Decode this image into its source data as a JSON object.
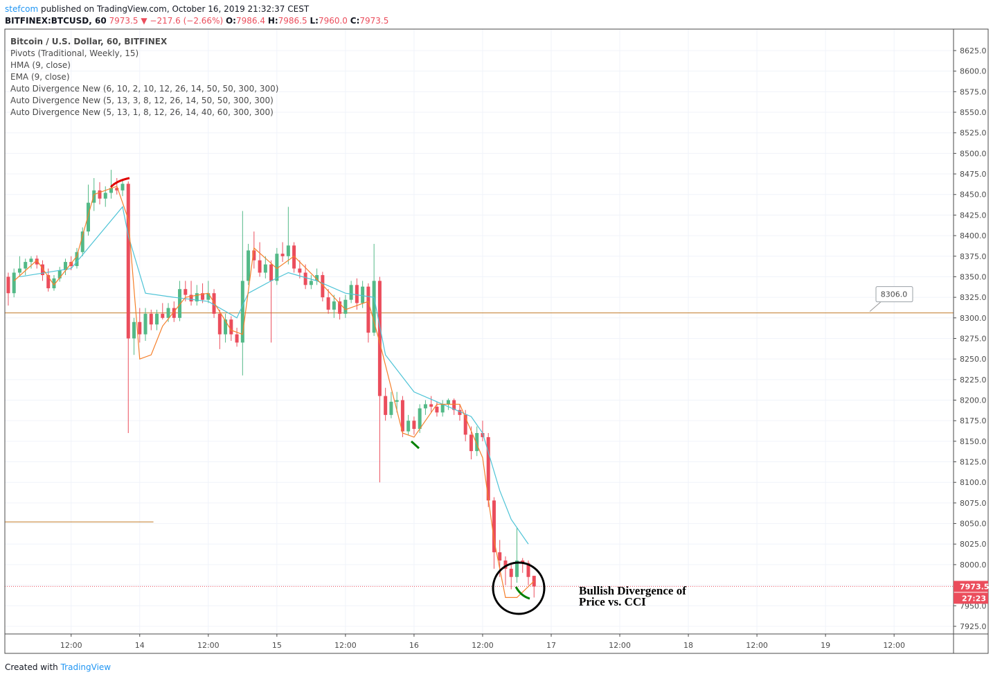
{
  "header": {
    "author": "stefcom",
    "published": "published on TradingView.com, October 16, 2019 21:32:37 CEST",
    "symbol": "BITFINEX:BTCUSD, 60",
    "last": "7973.5",
    "arrow": "▼",
    "change": "−217.6 (−2.66%)",
    "o_label": "O:",
    "o": "7986.4",
    "h_label": "H:",
    "h": "7986.5",
    "l_label": "L:",
    "l": "7960.0",
    "c_label": "C:",
    "c": "7973.5"
  },
  "legend": [
    "Bitcoin / U.S. Dollar, 60, BITFINEX",
    "Pivots (Traditional, Weekly, 15)",
    "HMA (9, close)",
    "EMA (9, close)",
    "Auto Divergence New (6, 10, 2, 10, 12, 26, 14, 50, 50, 300, 300)",
    "Auto Divergence New (5, 13, 3, 8, 12, 26, 14, 50, 50, 300, 300)",
    "Auto Divergence New (5, 13, 1, 8, 12, 26, 14, 40, 60, 300, 300)"
  ],
  "annotation": [
    "Bullish Divergence of",
    "Price vs. CCI"
  ],
  "countdown": "27:23",
  "footer": {
    "prefix": "Created with",
    "brand": "TradingView"
  },
  "chart_data": {
    "type": "candlestick",
    "xlim": [
      0.4,
      166.4
    ],
    "ylim": [
      7915.7,
      8651.1
    ],
    "xticks": [
      {
        "value": 12,
        "label": "12:00"
      },
      {
        "value": 24,
        "label": "14"
      },
      {
        "value": 36,
        "label": "12:00"
      },
      {
        "value": 48,
        "label": "15"
      },
      {
        "value": 60,
        "label": "12:00"
      },
      {
        "value": 72,
        "label": "16"
      },
      {
        "value": 84,
        "label": "12:00"
      },
      {
        "value": 96,
        "label": "17"
      },
      {
        "value": 108,
        "label": "12:00"
      },
      {
        "value": 120,
        "label": "18"
      },
      {
        "value": 132,
        "label": "12:00"
      },
      {
        "value": 144,
        "label": "19"
      },
      {
        "value": 156,
        "label": "12:00"
      }
    ],
    "yticks": [
      {
        "value": 7925,
        "label": "7925.0"
      },
      {
        "value": 7950,
        "label": "7950.0"
      },
      {
        "value": 7975,
        "label": "7975.0"
      },
      {
        "value": 8000,
        "label": "8000.0"
      },
      {
        "value": 8025,
        "label": "8025.0"
      },
      {
        "value": 8050,
        "label": "8050.0"
      },
      {
        "value": 8075,
        "label": "8075.0"
      },
      {
        "value": 8100,
        "label": "8100.0"
      },
      {
        "value": 8125,
        "label": "8125.0"
      },
      {
        "value": 8150,
        "label": "8150.0"
      },
      {
        "value": 8175,
        "label": "8175.0"
      },
      {
        "value": 8200,
        "label": "8200.0"
      },
      {
        "value": 8225,
        "label": "8225.0"
      },
      {
        "value": 8250,
        "label": "8250.0"
      },
      {
        "value": 8275,
        "label": "8275.0"
      },
      {
        "value": 8300,
        "label": "8300.0"
      },
      {
        "value": 8325,
        "label": "8325.0"
      },
      {
        "value": 8350,
        "label": "8350.0"
      },
      {
        "value": 8375,
        "label": "8375.0"
      },
      {
        "value": 8400,
        "label": "8400.0"
      },
      {
        "value": 8425,
        "label": "8425.0"
      },
      {
        "value": 8450,
        "label": "8450.0"
      },
      {
        "value": 8475,
        "label": "8475.0"
      },
      {
        "value": 8500,
        "label": "8500.0"
      },
      {
        "value": 8525,
        "label": "8525.0"
      },
      {
        "value": 8550,
        "label": "8550.0"
      },
      {
        "value": 8575,
        "label": "8575.0"
      },
      {
        "value": 8600,
        "label": "8600.0"
      },
      {
        "value": 8625,
        "label": "8625.0"
      }
    ],
    "grid": true,
    "up_color": "#53b987",
    "down_color": "#eb4d5c",
    "x": [
      1,
      2,
      3,
      4,
      5,
      6,
      7,
      8,
      9,
      10,
      11,
      12,
      13,
      14,
      15,
      16,
      17,
      18,
      19,
      20,
      21,
      22,
      23,
      24,
      25,
      26,
      27,
      28,
      29,
      30,
      31,
      32,
      33,
      34,
      35,
      36,
      37,
      38,
      39,
      40,
      41,
      42,
      43,
      44,
      45,
      46,
      47,
      48,
      49,
      50,
      51,
      52,
      53,
      54,
      55,
      56,
      57,
      58,
      59,
      60,
      61,
      62,
      63,
      64,
      65,
      66,
      67,
      68,
      69,
      70,
      71,
      72,
      73,
      74,
      75,
      76,
      77,
      78,
      79,
      80,
      81,
      82,
      83,
      84,
      85,
      86,
      87,
      88,
      89,
      90,
      91,
      92,
      93
    ],
    "candles": [
      [
        8350,
        8355,
        8315,
        8330
      ],
      [
        8330,
        8360,
        8325,
        8355
      ],
      [
        8355,
        8375,
        8350,
        8360
      ],
      [
        8360,
        8372,
        8352,
        8368
      ],
      [
        8368,
        8375,
        8360,
        8372
      ],
      [
        8372,
        8376,
        8360,
        8365
      ],
      [
        8365,
        8370,
        8345,
        8352
      ],
      [
        8352,
        8360,
        8332,
        8336
      ],
      [
        8336,
        8352,
        8333,
        8348
      ],
      [
        8348,
        8362,
        8344,
        8358
      ],
      [
        8358,
        8372,
        8352,
        8368
      ],
      [
        8368,
        8375,
        8358,
        8363
      ],
      [
        8363,
        8385,
        8360,
        8380
      ],
      [
        8380,
        8410,
        8375,
        8405
      ],
      [
        8405,
        8462,
        8400,
        8440
      ],
      [
        8440,
        8470,
        8430,
        8455
      ],
      [
        8455,
        8465,
        8438,
        8445
      ],
      [
        8445,
        8460,
        8435,
        8452
      ],
      [
        8452,
        8480,
        8445,
        8458
      ],
      [
        8458,
        8470,
        8450,
        8455
      ],
      [
        8455,
        8468,
        8448,
        8463
      ],
      [
        8463,
        8466,
        8160,
        8275
      ],
      [
        8275,
        8300,
        8255,
        8295
      ],
      [
        8295,
        8312,
        8270,
        8280
      ],
      [
        8280,
        8312,
        8272,
        8305
      ],
      [
        8305,
        8310,
        8285,
        8292
      ],
      [
        8292,
        8310,
        8285,
        8305
      ],
      [
        8305,
        8318,
        8298,
        8300
      ],
      [
        8300,
        8318,
        8295,
        8312
      ],
      [
        8312,
        8320,
        8295,
        8300
      ],
      [
        8300,
        8345,
        8296,
        8335
      ],
      [
        8335,
        8345,
        8320,
        8328
      ],
      [
        8328,
        8345,
        8315,
        8320
      ],
      [
        8320,
        8340,
        8315,
        8330
      ],
      [
        8330,
        8342,
        8318,
        8322
      ],
      [
        8322,
        8345,
        8318,
        8330
      ],
      [
        8330,
        8335,
        8300,
        8305
      ],
      [
        8305,
        8310,
        8262,
        8280
      ],
      [
        8280,
        8305,
        8270,
        8298
      ],
      [
        8298,
        8302,
        8272,
        8280
      ],
      [
        8280,
        8288,
        8265,
        8270
      ],
      [
        8270,
        8430,
        8230,
        8345
      ],
      [
        8345,
        8390,
        8340,
        8382
      ],
      [
        8382,
        8405,
        8360,
        8370
      ],
      [
        8370,
        8392,
        8350,
        8355
      ],
      [
        8355,
        8375,
        8348,
        8365
      ],
      [
        8365,
        8370,
        8270,
        8345
      ],
      [
        8345,
        8385,
        8340,
        8378
      ],
      [
        8378,
        8392,
        8368,
        8375
      ],
      [
        8375,
        8435,
        8365,
        8388
      ],
      [
        8388,
        8392,
        8355,
        8360
      ],
      [
        8360,
        8370,
        8348,
        8355
      ],
      [
        8355,
        8365,
        8335,
        8340
      ],
      [
        8340,
        8352,
        8335,
        8345
      ],
      [
        8345,
        8360,
        8340,
        8352
      ],
      [
        8352,
        8356,
        8320,
        8325
      ],
      [
        8325,
        8335,
        8305,
        8310
      ],
      [
        8310,
        8328,
        8300,
        8320
      ],
      [
        8320,
        8325,
        8298,
        8305
      ],
      [
        8305,
        8328,
        8300,
        8322
      ],
      [
        8322,
        8345,
        8318,
        8340
      ],
      [
        8340,
        8348,
        8310,
        8318
      ],
      [
        8318,
        8345,
        8312,
        8338
      ],
      [
        8338,
        8342,
        8270,
        8282
      ],
      [
        8282,
        8390,
        8278,
        8345
      ],
      [
        8345,
        8350,
        8100,
        8205
      ],
      [
        8205,
        8215,
        8175,
        8182
      ],
      [
        8182,
        8210,
        8178,
        8198
      ],
      [
        8198,
        8210,
        8185,
        8200
      ],
      [
        8200,
        8205,
        8155,
        8162
      ],
      [
        8162,
        8182,
        8158,
        8175
      ],
      [
        8175,
        8180,
        8158,
        8165
      ],
      [
        8165,
        8195,
        8160,
        8190
      ],
      [
        8190,
        8200,
        8182,
        8195
      ],
      [
        8195,
        8205,
        8185,
        8192
      ],
      [
        8192,
        8198,
        8180,
        8185
      ],
      [
        8185,
        8200,
        8180,
        8195
      ],
      [
        8195,
        8202,
        8188,
        8200
      ],
      [
        8200,
        8202,
        8182,
        8188
      ],
      [
        8188,
        8195,
        8175,
        8182
      ],
      [
        8182,
        8188,
        8150,
        8158
      ],
      [
        8158,
        8168,
        8128,
        8138
      ],
      [
        8138,
        8168,
        8132,
        8160
      ],
      [
        8160,
        8175,
        8150,
        8155
      ],
      [
        8155,
        8160,
        8070,
        8078
      ],
      [
        8078,
        8082,
        7995,
        8015
      ],
      [
        8015,
        8030,
        7985,
        8005
      ],
      [
        8005,
        8010,
        7975,
        7995
      ],
      [
        7995,
        8000,
        7970,
        7985
      ],
      [
        7985,
        8045,
        7978,
        8005
      ],
      [
        8005,
        8008,
        7990,
        8002
      ],
      [
        8002,
        8005,
        7975,
        7985
      ],
      [
        7986.4,
        7986.5,
        7960,
        7973.5
      ]
    ],
    "lines": [
      {
        "color": "#4dc3d6",
        "x": [
          3,
          12,
          21,
          22,
          25,
          30,
          36,
          41,
          43,
          47,
          50,
          55,
          60,
          65,
          67,
          72,
          77,
          82,
          84,
          87,
          89,
          92
        ],
        "values": [
          8350,
          8360,
          8435,
          8400,
          8330,
          8325,
          8320,
          8300,
          8330,
          8345,
          8355,
          8345,
          8330,
          8325,
          8255,
          8210,
          8195,
          8180,
          8160,
          8090,
          8055,
          8025
        ]
      },
      {
        "color": "#f57f2a",
        "x": [
          2,
          6,
          9,
          13,
          16,
          20,
          22,
          24,
          26,
          28,
          32,
          36,
          40,
          42,
          44,
          48,
          51,
          56,
          60,
          64,
          66,
          70,
          72,
          76,
          80,
          84,
          86,
          88,
          90,
          93
        ],
        "values": [
          8345,
          8370,
          8340,
          8375,
          8450,
          8460,
          8420,
          8250,
          8255,
          8290,
          8325,
          8330,
          8285,
          8280,
          8385,
          8360,
          8375,
          8340,
          8310,
          8320,
          8270,
          8160,
          8155,
          8195,
          8195,
          8130,
          8030,
          7960,
          7960,
          7980
        ]
      }
    ],
    "levels": [
      {
        "value": 8306,
        "label": "8306.0",
        "x": [
          0.4,
          166.4
        ]
      },
      {
        "value": 8052,
        "x": [
          0.4,
          26.4
        ]
      }
    ]
  }
}
